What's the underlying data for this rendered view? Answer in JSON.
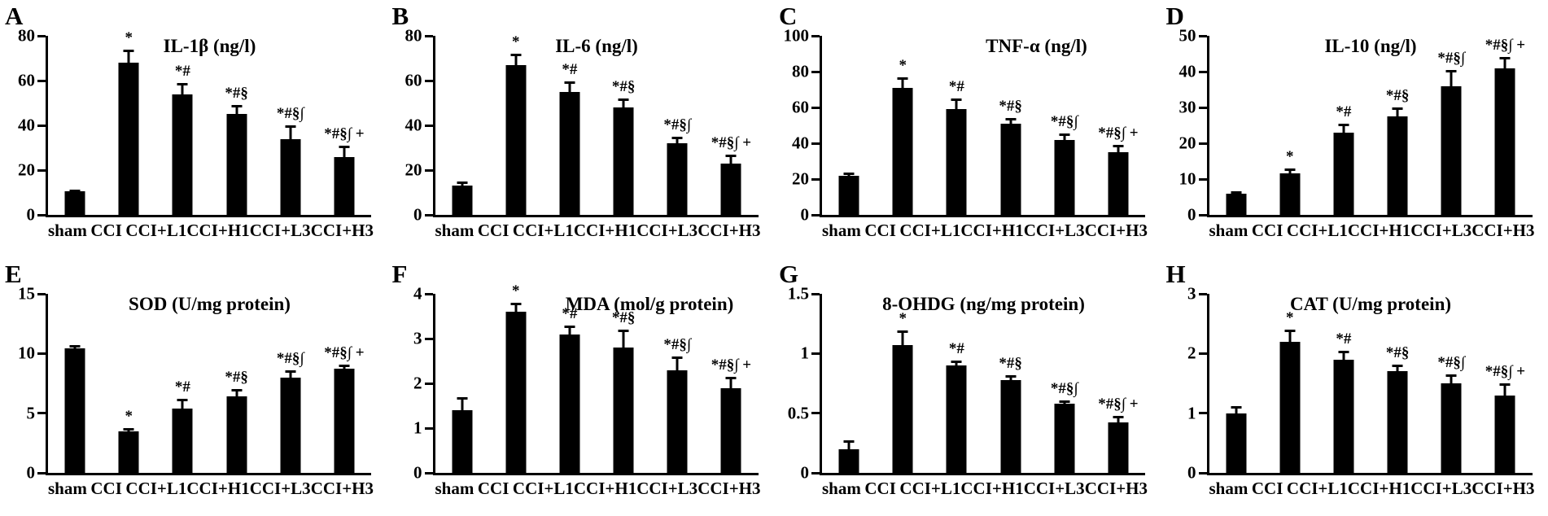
{
  "colors": {
    "bar": "#000000",
    "axis": "#000000",
    "background": "#ffffff"
  },
  "chart_data": [
    {
      "panel": "A",
      "type": "bar",
      "title": "IL-1β (ng/l)",
      "categories": [
        "sham",
        "CCI",
        "CCI+L1",
        "CCI+H1",
        "CCI+L3",
        "CCI+H3"
      ],
      "values": [
        10.5,
        68,
        54,
        45,
        34,
        26
      ],
      "errors": [
        0.8,
        6,
        5,
        4,
        6,
        5
      ],
      "annotations": [
        "",
        "*",
        "*#",
        "*#§",
        "*#§∫",
        "*#§∫ +"
      ],
      "xlabel": "",
      "ylabel": "",
      "ylim": [
        0,
        80
      ],
      "yticks": [
        0,
        20,
        40,
        60,
        80
      ],
      "grid": false,
      "legend": "none"
    },
    {
      "panel": "B",
      "type": "bar",
      "title": "IL-6 (ng/l)",
      "categories": [
        "sham",
        "CCI",
        "CCI+L1",
        "CCI+H1",
        "CCI+L3",
        "CCI+H3"
      ],
      "values": [
        13,
        67,
        55,
        48,
        32,
        23
      ],
      "errors": [
        2,
        5,
        4.5,
        4,
        3,
        4
      ],
      "annotations": [
        "",
        "*",
        "*#",
        "*#§",
        "*#§∫",
        "*#§∫ +"
      ],
      "xlabel": "",
      "ylabel": "",
      "ylim": [
        0,
        80
      ],
      "yticks": [
        0,
        20,
        40,
        60,
        80
      ],
      "grid": false,
      "legend": "none"
    },
    {
      "panel": "C",
      "type": "bar",
      "title": "TNF-α (ng/l)",
      "categories": [
        "sham",
        "CCI",
        "CCI+L1",
        "CCI+H1",
        "CCI+L3",
        "CCI+H3"
      ],
      "values": [
        22,
        71,
        59,
        51,
        42,
        35
      ],
      "errors": [
        1.5,
        6,
        6,
        3,
        3.5,
        4
      ],
      "annotations": [
        "",
        "*",
        "*#",
        "*#§",
        "*#§∫",
        "*#§∫ +"
      ],
      "xlabel": "",
      "ylabel": "",
      "ylim": [
        0,
        100
      ],
      "yticks": [
        0,
        20,
        40,
        60,
        80,
        100
      ],
      "grid": false,
      "legend": "none"
    },
    {
      "panel": "D",
      "type": "bar",
      "title": "IL-10 (ng/l)",
      "categories": [
        "sham",
        "CCI",
        "CCI+L1",
        "CCI+H1",
        "CCI+L3",
        "CCI+H3"
      ],
      "values": [
        6,
        11.5,
        23,
        27.5,
        36,
        41
      ],
      "errors": [
        0.5,
        1.5,
        2.5,
        2.5,
        4.5,
        3
      ],
      "annotations": [
        "",
        "*",
        "*#",
        "*#§",
        "*#§∫",
        "*#§∫ +"
      ],
      "xlabel": "",
      "ylabel": "",
      "ylim": [
        0,
        50
      ],
      "yticks": [
        0,
        10,
        20,
        30,
        40,
        50
      ],
      "grid": false,
      "legend": "none"
    },
    {
      "panel": "E",
      "type": "bar",
      "title": "SOD (U/mg protein)",
      "categories": [
        "sham",
        "CCI",
        "CCI+L1",
        "CCI+H1",
        "CCI+L3",
        "CCI+H3"
      ],
      "values": [
        10.4,
        3.5,
        5.4,
        6.4,
        8.0,
        8.7
      ],
      "errors": [
        0.3,
        0.25,
        0.8,
        0.6,
        0.6,
        0.4
      ],
      "annotations": [
        "",
        "*",
        "*#",
        "*#§",
        "*#§∫",
        "*#§∫ +"
      ],
      "xlabel": "",
      "ylabel": "",
      "ylim": [
        0,
        15
      ],
      "yticks": [
        0,
        5,
        10,
        15
      ],
      "grid": false,
      "legend": "none"
    },
    {
      "panel": "F",
      "type": "bar",
      "title": "MDA (mol/g protein)",
      "categories": [
        "sham",
        "CCI",
        "CCI+L1",
        "CCI+H1",
        "CCI+L3",
        "CCI+H3"
      ],
      "values": [
        1.4,
        3.6,
        3.1,
        2.8,
        2.3,
        1.9
      ],
      "errors": [
        0.3,
        0.2,
        0.2,
        0.4,
        0.3,
        0.25
      ],
      "annotations": [
        "",
        "*",
        "*#",
        "*#§",
        "*#§∫",
        "*#§∫ +"
      ],
      "xlabel": "",
      "ylabel": "",
      "ylim": [
        0,
        4
      ],
      "yticks": [
        0,
        1,
        2,
        3,
        4
      ],
      "grid": false,
      "legend": "none"
    },
    {
      "panel": "G",
      "type": "bar",
      "title": "8-OHDG (ng/mg protein)",
      "categories": [
        "sham",
        "CCI",
        "CCI+L1",
        "CCI+H1",
        "CCI+L3",
        "CCI+H3"
      ],
      "values": [
        0.2,
        1.07,
        0.9,
        0.78,
        0.58,
        0.42
      ],
      "errors": [
        0.07,
        0.12,
        0.04,
        0.04,
        0.03,
        0.06
      ],
      "annotations": [
        "",
        "*",
        "*#",
        "*#§",
        "*#§∫",
        "*#§∫ +"
      ],
      "xlabel": "",
      "ylabel": "",
      "ylim": [
        0,
        1.5
      ],
      "yticks": [
        0,
        0.5,
        1,
        1.5
      ],
      "grid": false,
      "legend": "none"
    },
    {
      "panel": "H",
      "type": "bar",
      "title": "CAT (U/mg protein)",
      "categories": [
        "sham",
        "CCI",
        "CCI+L1",
        "CCI+H1",
        "CCI+L3",
        "CCI+H3"
      ],
      "values": [
        1.0,
        2.2,
        1.9,
        1.7,
        1.5,
        1.3
      ],
      "errors": [
        0.12,
        0.2,
        0.15,
        0.12,
        0.15,
        0.2
      ],
      "annotations": [
        "",
        "*",
        "*#",
        "*#§",
        "*#§∫",
        "*#§∫ +"
      ],
      "xlabel": "",
      "ylabel": "",
      "ylim": [
        0,
        3
      ],
      "yticks": [
        0,
        1,
        2,
        3
      ],
      "grid": false,
      "legend": "none"
    }
  ]
}
